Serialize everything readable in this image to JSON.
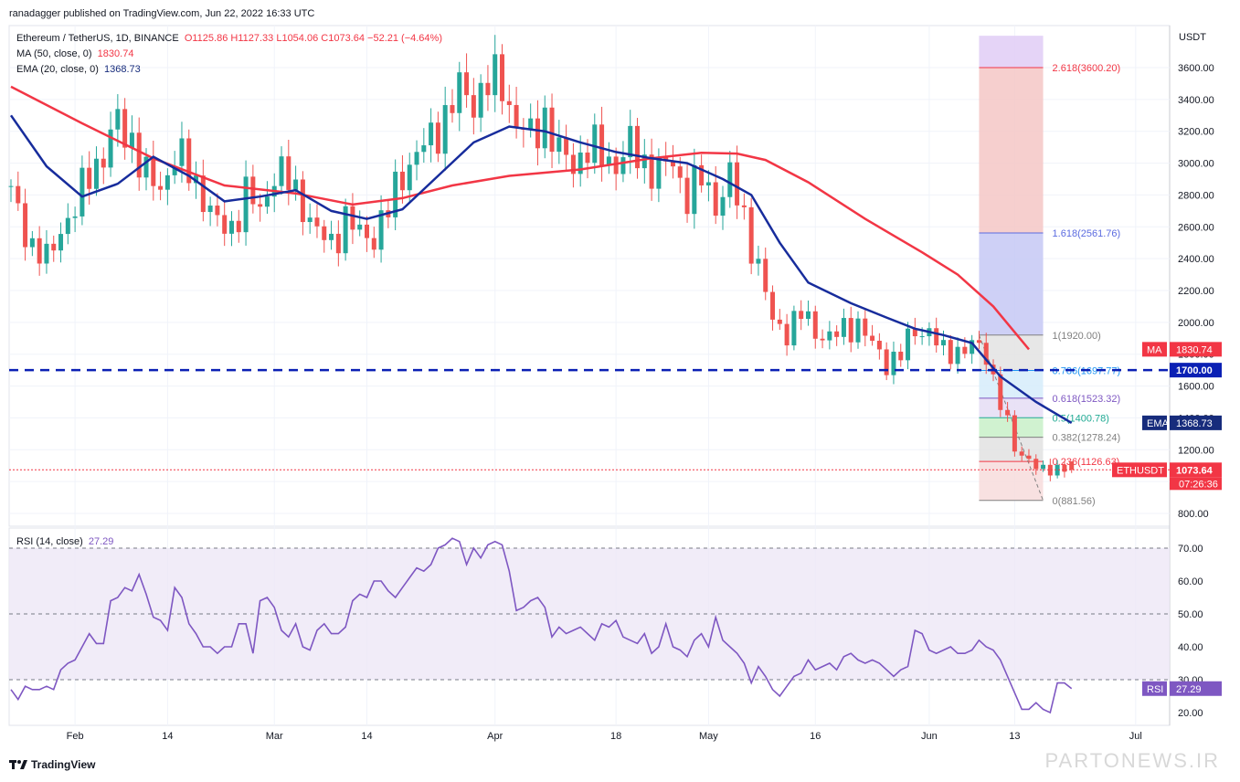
{
  "header": {
    "publisher": "ranadagger published on TradingView.com, Jun 22, 2022 16:33 UTC",
    "symbol": "Ethereum / TetherUS, 1D, BINANCE",
    "ohlc": "O1125.86  H1127.33  L1054.06  C1073.64  −52.21 (−4.64%)",
    "ma_label": "MA (50, close, 0)",
    "ma_value": "1830.74",
    "ema_label": "EMA (20, close, 0)",
    "ema_value": "1368.73",
    "rsi_label": "RSI (14, close)",
    "rsi_value": "27.29",
    "currency": "USDT"
  },
  "footer": {
    "brand": "TradingView",
    "watermark": "PARTONEWS.IR"
  },
  "chart_data": {
    "type": "candlestick",
    "currency": "USDT",
    "y_ticks": [
      800,
      1000,
      1200,
      1400,
      1600,
      1800,
      2000,
      2200,
      2400,
      2600,
      2800,
      3000,
      3200,
      3400,
      3600
    ],
    "y_tick_labels": [
      "800.00",
      "1000.00",
      "1200.00",
      "1400.00",
      "1600.00",
      "1800.00",
      "2000.00",
      "2200.00",
      "2400.00",
      "2600.00",
      "2800.00",
      "3000.00",
      "3200.00",
      "3400.00",
      "3600.00"
    ],
    "ylim": [
      730,
      3800
    ],
    "x_ticks": [
      {
        "day": 9,
        "label": "Feb"
      },
      {
        "day": 22,
        "label": "14"
      },
      {
        "day": 37,
        "label": "Mar"
      },
      {
        "day": 50,
        "label": "14"
      },
      {
        "day": 68,
        "label": "Apr"
      },
      {
        "day": 85,
        "label": "18"
      },
      {
        "day": 98,
        "label": "May"
      },
      {
        "day": 113,
        "label": "16"
      },
      {
        "day": 129,
        "label": "Jun"
      },
      {
        "day": 141,
        "label": "13"
      },
      {
        "day": 158,
        "label": "Jul"
      }
    ],
    "close_path": [
      [
        0,
        2800
      ],
      [
        3,
        2480
      ],
      [
        5,
        2380
      ],
      [
        7,
        2600
      ],
      [
        9,
        2700
      ],
      [
        11,
        2950
      ],
      [
        13,
        3050
      ],
      [
        15,
        3250
      ],
      [
        17,
        3150
      ],
      [
        19,
        2900
      ],
      [
        21,
        2850
      ],
      [
        23,
        3050
      ],
      [
        25,
        2950
      ],
      [
        27,
        2800
      ],
      [
        29,
        2600
      ],
      [
        31,
        2600
      ],
      [
        33,
        2800
      ],
      [
        35,
        2700
      ],
      [
        37,
        2950
      ],
      [
        39,
        2880
      ],
      [
        41,
        2750
      ],
      [
        43,
        2550
      ],
      [
        45,
        2500
      ],
      [
        47,
        2650
      ],
      [
        49,
        2550
      ],
      [
        51,
        2550
      ],
      [
        53,
        2700
      ],
      [
        55,
        2950
      ],
      [
        57,
        3050
      ],
      [
        59,
        3150
      ],
      [
        61,
        3300
      ],
      [
        63,
        3450
      ],
      [
        65,
        3400
      ],
      [
        67,
        3500
      ],
      [
        69,
        3500
      ],
      [
        71,
        3250
      ],
      [
        73,
        3150
      ],
      [
        75,
        3300
      ],
      [
        77,
        3050
      ],
      [
        79,
        3000
      ],
      [
        81,
        3100
      ],
      [
        83,
        3050
      ],
      [
        85,
        3000
      ],
      [
        87,
        3100
      ],
      [
        89,
        3000
      ],
      [
        91,
        2950
      ],
      [
        93,
        3000
      ],
      [
        95,
        2800
      ],
      [
        97,
        2900
      ],
      [
        99,
        2750
      ],
      [
        101,
        2900
      ],
      [
        103,
        2650
      ],
      [
        105,
        2350
      ],
      [
        107,
        2000
      ],
      [
        109,
        1950
      ],
      [
        111,
        2050
      ],
      [
        113,
        1950
      ],
      [
        115,
        1900
      ],
      [
        117,
        1950
      ],
      [
        119,
        2000
      ],
      [
        121,
        1850
      ],
      [
        123,
        1750
      ],
      [
        125,
        1800
      ],
      [
        127,
        1950
      ],
      [
        129,
        1950
      ],
      [
        131,
        1800
      ],
      [
        133,
        1830
      ],
      [
        135,
        1850
      ],
      [
        137,
        1800
      ],
      [
        139,
        1500
      ],
      [
        141,
        1200
      ],
      [
        143,
        1150
      ],
      [
        145,
        1050
      ],
      [
        147,
        1090
      ],
      [
        148,
        1100
      ],
      [
        149,
        1073.64
      ]
    ],
    "ma50": [
      [
        0,
        3480
      ],
      [
        10,
        3250
      ],
      [
        20,
        3030
      ],
      [
        30,
        2860
      ],
      [
        40,
        2810
      ],
      [
        48,
        2740
      ],
      [
        55,
        2780
      ],
      [
        62,
        2860
      ],
      [
        70,
        2920
      ],
      [
        80,
        2960
      ],
      [
        90,
        3030
      ],
      [
        97,
        3065
      ],
      [
        102,
        3060
      ],
      [
        106,
        3020
      ],
      [
        112,
        2880
      ],
      [
        120,
        2650
      ],
      [
        128,
        2440
      ],
      [
        133,
        2300
      ],
      [
        138,
        2100
      ],
      [
        143,
        1830.74
      ]
    ],
    "ema20": [
      [
        0,
        3300
      ],
      [
        5,
        2980
      ],
      [
        10,
        2790
      ],
      [
        15,
        2870
      ],
      [
        20,
        3040
      ],
      [
        25,
        2920
      ],
      [
        30,
        2760
      ],
      [
        35,
        2790
      ],
      [
        40,
        2830
      ],
      [
        45,
        2700
      ],
      [
        50,
        2650
      ],
      [
        55,
        2710
      ],
      [
        60,
        2920
      ],
      [
        65,
        3130
      ],
      [
        70,
        3230
      ],
      [
        75,
        3200
      ],
      [
        80,
        3130
      ],
      [
        85,
        3070
      ],
      [
        90,
        3030
      ],
      [
        95,
        3000
      ],
      [
        100,
        2900
      ],
      [
        104,
        2800
      ],
      [
        108,
        2500
      ],
      [
        112,
        2250
      ],
      [
        118,
        2120
      ],
      [
        123,
        2030
      ],
      [
        127,
        1960
      ],
      [
        131,
        1920
      ],
      [
        135,
        1870
      ],
      [
        139,
        1660
      ],
      [
        144,
        1500
      ],
      [
        149,
        1368.73
      ]
    ],
    "price_lines": [
      {
        "value": 1700.0,
        "label": "1700.00",
        "style": "dashed",
        "color": "#0b20b4"
      },
      {
        "value": 1073.64,
        "label": "1073.64",
        "style": "dotted",
        "color": "#f23645",
        "tag": "ETHUSDT",
        "countdown": "07:26:36"
      }
    ],
    "series_tags": [
      {
        "name": "MA",
        "value": "1830.74",
        "color": "#f23645"
      },
      {
        "name": "EMA",
        "value": "1368.73",
        "color": "#172c7c"
      }
    ],
    "fib": {
      "day_start": 136,
      "day_end": 145,
      "levels": [
        {
          "ratio": "2.618",
          "value": 3600.2,
          "label": "2.618(3600.20)",
          "fill": "#f4c7c5",
          "color": "#f23645"
        },
        {
          "ratio": "1.618",
          "value": 2561.76,
          "label": "1.618(2561.76)",
          "fill": "#c5c8f4",
          "color": "#5b6be0"
        },
        {
          "ratio": "1",
          "value": 1920.0,
          "label": "1(1920.00)",
          "fill": "#e3e3e3",
          "color": "#808080"
        },
        {
          "ratio": "0.786",
          "value": 1697.77,
          "label": "0.786(1697.77)",
          "fill": "#d6ecfa",
          "color": "#2196f3"
        },
        {
          "ratio": "0.618",
          "value": 1523.32,
          "label": "0.618(1523.32)",
          "fill": "#e5ddf4",
          "color": "#7e57c2"
        },
        {
          "ratio": "0.5",
          "value": 1400.78,
          "label": "0.5(1400.78)",
          "fill": "#c8f0c8",
          "color": "#22ab94"
        },
        {
          "ratio": "0.382",
          "value": 1278.24,
          "label": "0.382(1278.24)",
          "fill": "#e2e2e2",
          "color": "#808080"
        },
        {
          "ratio": "0.236",
          "value": 1126.63,
          "label": "0.236(1126.63)",
          "fill": "#f7dcdc",
          "color": "#f23645"
        },
        {
          "ratio": "0",
          "value": 881.56,
          "label": "0(881.56)",
          "fill": "#ffffff",
          "color": "#808080"
        }
      ],
      "top": {
        "value": 3800,
        "fill": "#e2cff6"
      }
    },
    "rsi": {
      "ylim": [
        15,
        75
      ],
      "y_ticks": [
        20,
        30,
        40,
        50,
        60,
        70
      ],
      "y_tick_labels": [
        "20.00",
        "30.00",
        "40.00",
        "50.00",
        "60.00",
        "70.00"
      ],
      "band": [
        30,
        70
      ],
      "midline": 50,
      "last": "27.29",
      "values": [
        [
          0,
          27
        ],
        [
          1,
          24
        ],
        [
          2,
          28
        ],
        [
          3,
          27
        ],
        [
          4,
          27
        ],
        [
          5,
          28
        ],
        [
          6,
          27
        ],
        [
          7,
          33
        ],
        [
          8,
          35
        ],
        [
          9,
          36
        ],
        [
          10,
          40
        ],
        [
          11,
          44
        ],
        [
          12,
          41
        ],
        [
          13,
          41
        ],
        [
          14,
          54
        ],
        [
          15,
          55
        ],
        [
          16,
          58
        ],
        [
          17,
          57
        ],
        [
          18,
          62
        ],
        [
          19,
          56
        ],
        [
          20,
          49
        ],
        [
          21,
          48
        ],
        [
          22,
          45
        ],
        [
          23,
          58
        ],
        [
          24,
          55
        ],
        [
          25,
          47
        ],
        [
          26,
          44
        ],
        [
          27,
          40
        ],
        [
          28,
          40
        ],
        [
          29,
          38
        ],
        [
          30,
          40
        ],
        [
          31,
          40
        ],
        [
          32,
          47
        ],
        [
          33,
          47
        ],
        [
          34,
          38
        ],
        [
          35,
          54
        ],
        [
          36,
          55
        ],
        [
          37,
          52
        ],
        [
          38,
          45
        ],
        [
          39,
          43
        ],
        [
          40,
          47
        ],
        [
          41,
          40
        ],
        [
          42,
          39
        ],
        [
          43,
          45
        ],
        [
          44,
          47
        ],
        [
          45,
          44
        ],
        [
          46,
          44
        ],
        [
          47,
          46
        ],
        [
          48,
          54
        ],
        [
          49,
          56
        ],
        [
          50,
          55
        ],
        [
          51,
          60
        ],
        [
          52,
          60
        ],
        [
          53,
          57
        ],
        [
          54,
          55
        ],
        [
          55,
          58
        ],
        [
          56,
          61
        ],
        [
          57,
          64
        ],
        [
          58,
          63
        ],
        [
          59,
          65
        ],
        [
          60,
          70
        ],
        [
          61,
          71
        ],
        [
          62,
          73
        ],
        [
          63,
          72
        ],
        [
          64,
          65
        ],
        [
          65,
          70
        ],
        [
          66,
          67
        ],
        [
          67,
          71
        ],
        [
          68,
          72
        ],
        [
          69,
          71
        ],
        [
          70,
          63
        ],
        [
          71,
          51
        ],
        [
          72,
          52
        ],
        [
          73,
          54
        ],
        [
          74,
          55
        ],
        [
          75,
          52
        ],
        [
          76,
          43
        ],
        [
          77,
          46
        ],
        [
          78,
          44
        ],
        [
          79,
          45
        ],
        [
          80,
          46
        ],
        [
          81,
          44
        ],
        [
          82,
          42
        ],
        [
          83,
          47
        ],
        [
          84,
          46
        ],
        [
          85,
          48
        ],
        [
          86,
          43
        ],
        [
          87,
          42
        ],
        [
          88,
          41
        ],
        [
          89,
          44
        ],
        [
          90,
          38
        ],
        [
          91,
          40
        ],
        [
          92,
          47
        ],
        [
          93,
          40
        ],
        [
          94,
          39
        ],
        [
          95,
          37
        ],
        [
          96,
          42
        ],
        [
          97,
          44
        ],
        [
          98,
          40
        ],
        [
          99,
          49
        ],
        [
          100,
          42
        ],
        [
          101,
          40
        ],
        [
          102,
          38
        ],
        [
          103,
          35
        ],
        [
          104,
          29
        ],
        [
          105,
          34
        ],
        [
          106,
          31
        ],
        [
          107,
          27
        ],
        [
          108,
          25
        ],
        [
          109,
          28
        ],
        [
          110,
          31
        ],
        [
          111,
          32
        ],
        [
          112,
          36
        ],
        [
          113,
          33
        ],
        [
          114,
          34
        ],
        [
          115,
          35
        ],
        [
          116,
          33
        ],
        [
          117,
          37
        ],
        [
          118,
          38
        ],
        [
          119,
          36
        ],
        [
          120,
          35
        ],
        [
          121,
          36
        ],
        [
          122,
          35
        ],
        [
          123,
          33
        ],
        [
          124,
          31
        ],
        [
          125,
          33
        ],
        [
          126,
          34
        ],
        [
          127,
          45
        ],
        [
          128,
          44
        ],
        [
          129,
          39
        ],
        [
          130,
          38
        ],
        [
          131,
          39
        ],
        [
          132,
          40
        ],
        [
          133,
          38
        ],
        [
          134,
          38
        ],
        [
          135,
          39
        ],
        [
          136,
          42
        ],
        [
          137,
          40
        ],
        [
          138,
          39
        ],
        [
          139,
          36
        ],
        [
          140,
          31
        ],
        [
          141,
          26
        ],
        [
          142,
          21
        ],
        [
          143,
          21
        ],
        [
          144,
          23
        ],
        [
          145,
          21
        ],
        [
          146,
          20
        ],
        [
          147,
          29
        ],
        [
          148,
          29
        ],
        [
          149,
          27.29
        ]
      ]
    }
  }
}
